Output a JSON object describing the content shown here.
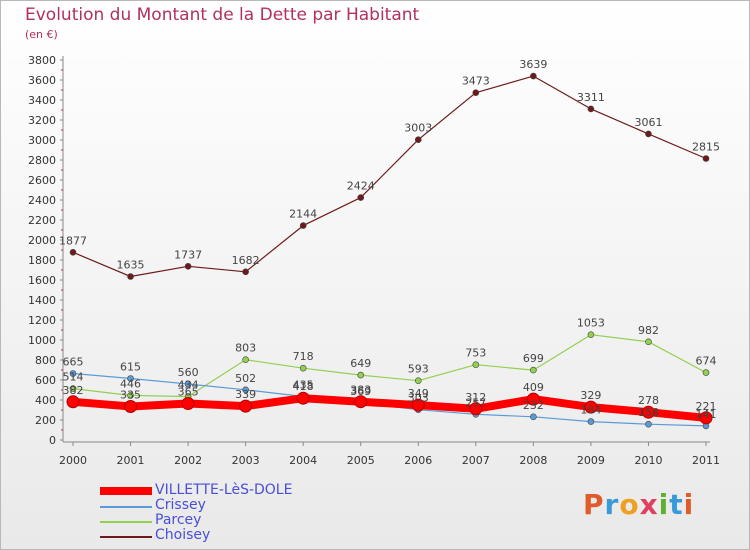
{
  "header": {
    "title": "Evolution du Montant de la Dette par Habitant",
    "subtitle": "(en €)"
  },
  "brand": {
    "text": "Proxiti",
    "colors": [
      "#e05a2a",
      "#3a9ad9",
      "#f0a020",
      "#e04060",
      "#60b030",
      "#3a9ad9",
      "#e05a2a"
    ]
  },
  "chart_data": {
    "type": "line",
    "x": [
      "2000",
      "2001",
      "2002",
      "2003",
      "2004",
      "2005",
      "2006",
      "2007",
      "2008",
      "2009",
      "2010",
      "2011"
    ],
    "ylim": [
      0,
      3800
    ],
    "yticks": [
      0,
      200,
      400,
      600,
      800,
      1000,
      1200,
      1400,
      1600,
      1800,
      2000,
      2200,
      2400,
      2600,
      2800,
      3000,
      3200,
      3400,
      3600,
      3800
    ],
    "grid": false,
    "legend_position": "bottom-left",
    "series": [
      {
        "name": "VILLETTE-LèS-DOLE",
        "color": "#ff0000",
        "width": 8,
        "marker": 6,
        "values": [
          382,
          335,
          365,
          339,
          418,
          383,
          349,
          312,
          409,
          329,
          278,
          221
        ]
      },
      {
        "name": "Crissey",
        "color": "#5b9bd5",
        "width": 1.2,
        "marker": 3,
        "values": [
          665,
          615,
          560,
          502,
          435,
          369,
          303,
          257,
          232,
          184,
          158,
          141
        ]
      },
      {
        "name": "Parcey",
        "color": "#92d050",
        "width": 1.2,
        "marker": 3,
        "values": [
          514,
          446,
          434,
          803,
          718,
          649,
          593,
          753,
          699,
          1053,
          982,
          674
        ]
      },
      {
        "name": "Choisey",
        "color": "#6e1a1a",
        "width": 1.2,
        "marker": 3,
        "values": [
          1877,
          1635,
          1737,
          1682,
          2144,
          2424,
          3003,
          3473,
          3639,
          3311,
          3061,
          2815
        ]
      }
    ]
  }
}
